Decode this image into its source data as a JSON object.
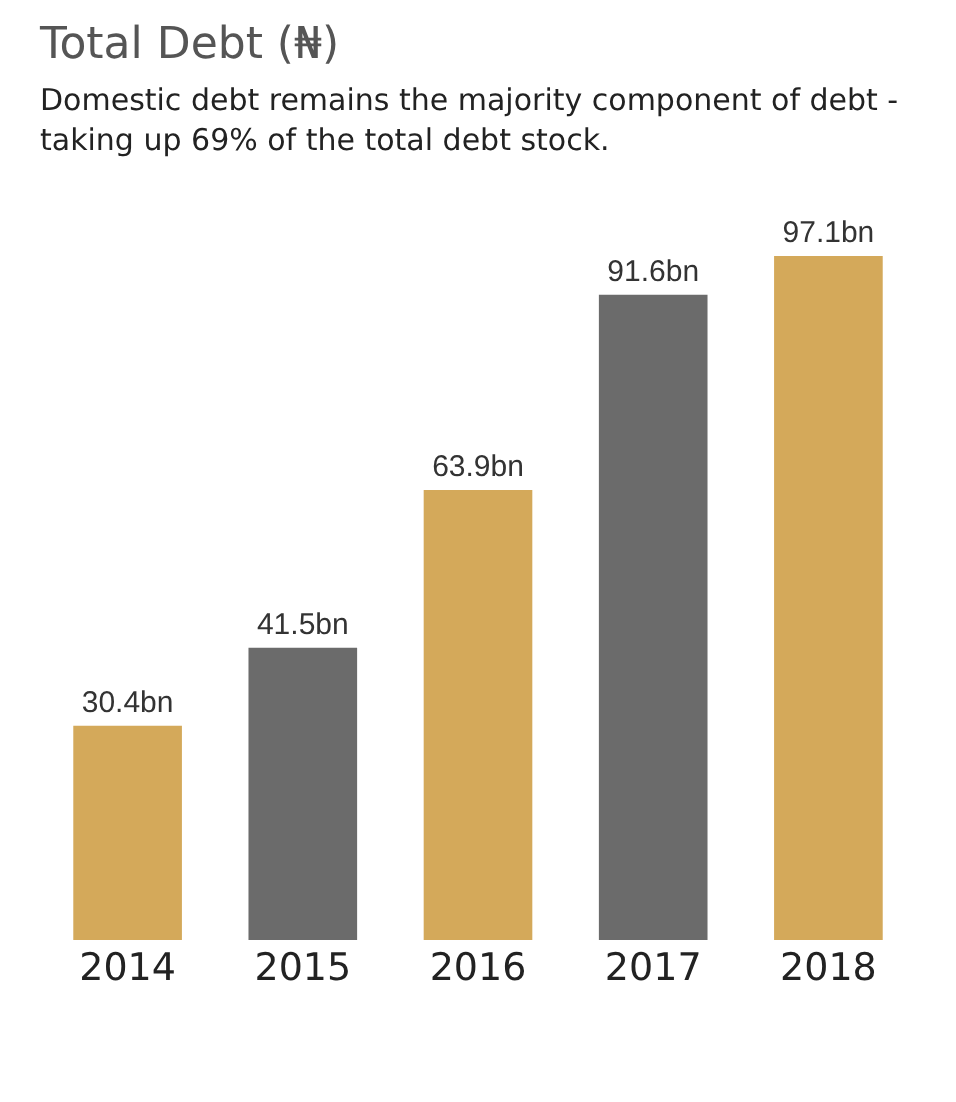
{
  "chart_data": {
    "type": "bar",
    "title": "Total Debt (₦)",
    "subtitle": "Domestic debt remains the majority component of debt - taking up 69% of the total debt stock.",
    "categories": [
      "2014",
      "2015",
      "2016",
      "2017",
      "2018"
    ],
    "values": [
      30.4,
      41.5,
      63.9,
      91.6,
      97.1
    ],
    "colors": [
      "#d4a95a",
      "#6b6b6b",
      "#d4a95a",
      "#6b6b6b",
      "#d4a95a"
    ],
    "value_labels": [
      "30.4bn",
      "41.5bn",
      "63.9bn",
      "91.6bn",
      "97.1bn"
    ],
    "grid": false
  }
}
